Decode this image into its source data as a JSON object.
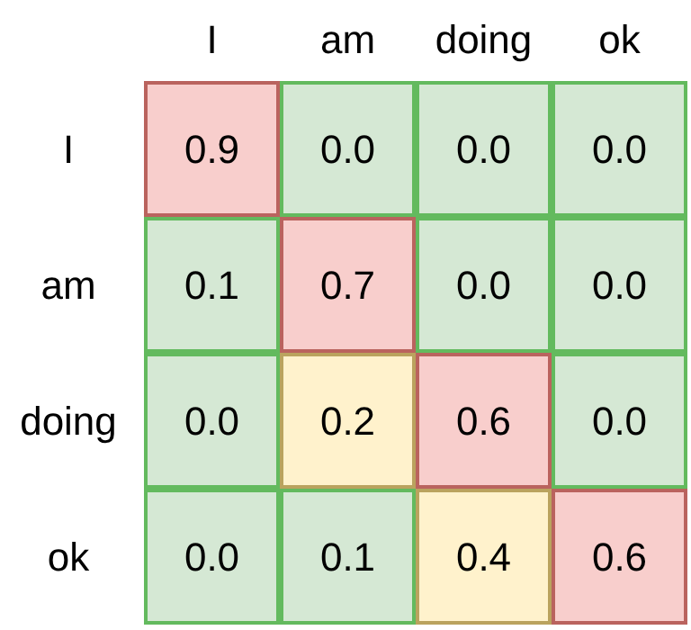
{
  "chart_data": {
    "type": "heatmap",
    "categories": [
      "I",
      "am",
      "doing",
      "ok"
    ],
    "y_categories": [
      "I",
      "am",
      "doing",
      "ok"
    ],
    "cells": [
      [
        0.9,
        0.0,
        0.0,
        0.0
      ],
      [
        0.1,
        0.7,
        0.0,
        0.0
      ],
      [
        0.0,
        0.2,
        0.6,
        0.0
      ],
      [
        0.0,
        0.1,
        0.4,
        0.6
      ]
    ],
    "cell_labels": [
      [
        "0.9",
        "0.0",
        "0.0",
        "0.0"
      ],
      [
        "0.1",
        "0.7",
        "0.0",
        "0.0"
      ],
      [
        "0.0",
        "0.2",
        "0.6",
        "0.0"
      ],
      [
        "0.0",
        "0.1",
        "0.4",
        "0.6"
      ]
    ]
  }
}
